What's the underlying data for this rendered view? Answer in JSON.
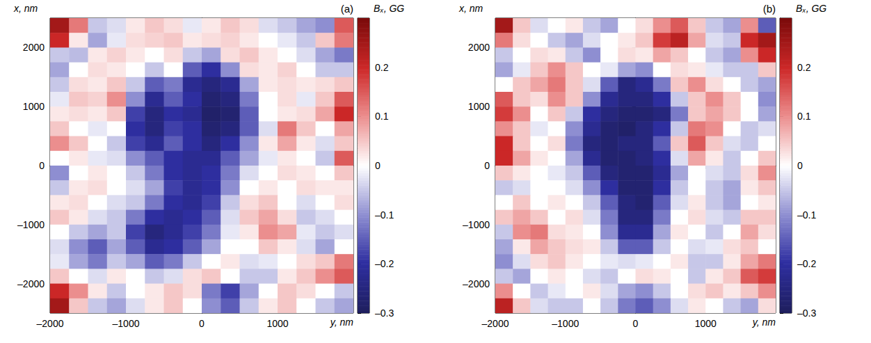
{
  "chart_data": [
    {
      "type": "heatmap",
      "title": "(a)",
      "xlabel": "y, nm",
      "ylabel": "x, nm",
      "xlim": [
        -2000,
        2000
      ],
      "xticks": [
        {
          "value": -2000,
          "label": "–2000"
        },
        {
          "value": -1000,
          "label": "–1000"
        },
        0,
        1000
      ],
      "ylim": [
        -2500,
        2500
      ],
      "yticks": [
        {
          "value": -2000,
          "label": "–2000"
        },
        {
          "value": -1000,
          "label": "–1000"
        },
        0,
        1000,
        2000
      ],
      "cells": {
        "x": [
          -1875,
          -1625,
          -1375,
          -1125,
          -875,
          -625,
          -375,
          -125,
          125,
          375,
          625,
          875,
          1125,
          1375,
          1625,
          1875
        ],
        "y": [
          2375,
          2125,
          1875,
          1625,
          1375,
          1125,
          875,
          625,
          375,
          125,
          -125,
          -375,
          -625,
          -875,
          -1125,
          -1375,
          -1625,
          -1875,
          -2125,
          -2375
        ],
        "values": [
          [
            0.25,
            0.12,
            -0.05,
            -0.03,
            0.02,
            0.05,
            0.03,
            -0.02,
            0.02,
            0.05,
            0.03,
            -0.03,
            -0.05,
            -0.08,
            -0.1,
            0.15
          ],
          [
            0.2,
            0.02,
            -0.08,
            -0.02,
            0.03,
            0.04,
            0.05,
            0.02,
            0.03,
            0.04,
            0.02,
            0.0,
            -0.02,
            -0.05,
            0.05,
            0.12
          ],
          [
            -0.05,
            -0.06,
            0.02,
            0.04,
            0.02,
            0.0,
            0.03,
            -0.05,
            -0.08,
            0.03,
            0.05,
            0.02,
            0.0,
            -0.03,
            -0.08,
            -0.12
          ],
          [
            -0.08,
            0.0,
            0.03,
            0.02,
            0.0,
            -0.05,
            0.0,
            -0.15,
            -0.2,
            -0.1,
            0.03,
            0.02,
            0.04,
            0.0,
            -0.05,
            -0.05
          ],
          [
            -0.05,
            0.03,
            0.02,
            0.05,
            -0.05,
            -0.15,
            -0.12,
            -0.22,
            -0.25,
            -0.22,
            -0.08,
            0.02,
            0.03,
            0.02,
            0.03,
            0.05
          ],
          [
            -0.02,
            0.05,
            0.04,
            0.1,
            -0.1,
            -0.22,
            -0.15,
            -0.2,
            -0.27,
            -0.25,
            -0.12,
            0.0,
            0.03,
            -0.02,
            0.05,
            0.15
          ],
          [
            0.02,
            0.03,
            0.02,
            0.05,
            -0.18,
            -0.25,
            -0.2,
            -0.22,
            -0.28,
            -0.27,
            -0.15,
            0.0,
            0.02,
            0.03,
            0.08,
            0.2
          ],
          [
            0.05,
            0.0,
            -0.02,
            0.0,
            -0.2,
            -0.25,
            -0.18,
            -0.2,
            -0.27,
            -0.25,
            -0.15,
            -0.03,
            0.12,
            0.05,
            0.0,
            0.08
          ],
          [
            0.1,
            0.05,
            0.0,
            -0.05,
            -0.18,
            -0.22,
            -0.15,
            -0.2,
            -0.25,
            -0.2,
            -0.1,
            0.02,
            0.08,
            0.02,
            -0.03,
            0.05
          ],
          [
            0.0,
            0.02,
            -0.02,
            -0.03,
            -0.1,
            -0.15,
            -0.2,
            -0.22,
            -0.22,
            -0.15,
            -0.08,
            -0.02,
            0.02,
            0.0,
            -0.05,
            0.15
          ],
          [
            -0.1,
            0.0,
            0.02,
            0.0,
            -0.05,
            -0.12,
            -0.2,
            -0.22,
            -0.2,
            -0.12,
            -0.03,
            0.0,
            0.03,
            0.02,
            0.0,
            0.05
          ],
          [
            -0.05,
            0.02,
            0.03,
            0.0,
            -0.03,
            -0.08,
            -0.18,
            -0.22,
            -0.2,
            -0.1,
            0.0,
            0.02,
            0.0,
            0.03,
            0.02,
            0.02
          ],
          [
            0.02,
            0.03,
            0.0,
            -0.03,
            -0.05,
            -0.12,
            -0.2,
            -0.22,
            -0.18,
            -0.05,
            0.03,
            0.05,
            0.0,
            -0.03,
            0.0,
            0.03
          ],
          [
            0.05,
            0.02,
            -0.03,
            -0.05,
            -0.12,
            -0.2,
            -0.22,
            -0.2,
            -0.15,
            -0.03,
            0.05,
            0.08,
            0.03,
            -0.05,
            -0.03,
            0.0
          ],
          [
            0.0,
            -0.05,
            -0.08,
            -0.05,
            -0.18,
            -0.25,
            -0.22,
            -0.18,
            -0.12,
            -0.02,
            0.02,
            0.1,
            0.08,
            -0.02,
            -0.05,
            -0.03
          ],
          [
            -0.03,
            -0.1,
            -0.15,
            -0.08,
            -0.15,
            -0.22,
            -0.2,
            -0.15,
            -0.08,
            0.0,
            0.0,
            0.05,
            0.02,
            -0.03,
            -0.08,
            0.0
          ],
          [
            -0.02,
            -0.08,
            -0.12,
            -0.05,
            -0.08,
            -0.15,
            -0.12,
            -0.05,
            0.0,
            0.02,
            -0.03,
            -0.02,
            0.0,
            0.03,
            0.05,
            0.12
          ],
          [
            0.05,
            0.0,
            -0.03,
            0.02,
            0.0,
            -0.05,
            -0.03,
            0.03,
            0.05,
            0.0,
            -0.05,
            -0.05,
            0.02,
            0.05,
            0.1,
            0.15
          ],
          [
            0.2,
            0.1,
            0.02,
            -0.05,
            0.0,
            0.02,
            0.05,
            0.03,
            -0.12,
            -0.18,
            -0.08,
            0.0,
            0.05,
            0.03,
            0.0,
            -0.05
          ],
          [
            0.25,
            0.05,
            -0.05,
            -0.08,
            -0.03,
            0.02,
            0.05,
            0.0,
            -0.1,
            -0.15,
            -0.05,
            0.02,
            0.05,
            0.0,
            -0.05,
            -0.08
          ]
        ]
      },
      "colorbar": {
        "label": "Bₓ, GG",
        "range": [
          -0.3,
          0.3
        ],
        "ticks": [
          {
            "value": -0.3,
            "label": "–0.3"
          },
          {
            "value": -0.2,
            "label": "–0.2"
          },
          {
            "value": -0.1,
            "label": "–0.1"
          },
          0,
          0.1,
          0.2
        ]
      }
    },
    {
      "type": "heatmap",
      "title": "(b)",
      "xlabel": "y, nm",
      "ylabel": "x, nm",
      "xlim": [
        -2000,
        2000
      ],
      "xticks": [
        {
          "value": -2000,
          "label": "–2000"
        },
        {
          "value": -1000,
          "label": "–1000"
        },
        0,
        1000
      ],
      "ylim": [
        -2500,
        2500
      ],
      "yticks": [
        {
          "value": -2000,
          "label": "–2000"
        },
        {
          "value": -1000,
          "label": "–1000"
        },
        0,
        1000,
        2000
      ],
      "cells": {
        "x": [
          -1875,
          -1625,
          -1375,
          -1125,
          -875,
          -625,
          -375,
          -125,
          125,
          375,
          625,
          875,
          1125,
          1375,
          1625,
          1875
        ],
        "y": [
          2375,
          2125,
          1875,
          1625,
          1375,
          1125,
          875,
          625,
          375,
          125,
          -125,
          -375,
          -625,
          -875,
          -1125,
          -1375,
          -1625,
          -1875,
          -2125,
          -2375
        ],
        "values": [
          [
            0.25,
            0.05,
            -0.03,
            0.0,
            0.02,
            -0.05,
            -0.08,
            0.0,
            0.03,
            0.1,
            0.15,
            0.05,
            -0.05,
            -0.08,
            0.1,
            -0.15
          ],
          [
            0.12,
            0.03,
            0.0,
            -0.05,
            -0.08,
            -0.03,
            0.0,
            0.02,
            0.05,
            0.18,
            0.22,
            0.08,
            -0.03,
            -0.05,
            0.2,
            0.25
          ],
          [
            -0.05,
            0.0,
            0.03,
            0.02,
            -0.05,
            -0.1,
            0.0,
            0.03,
            0.02,
            0.08,
            0.05,
            0.0,
            -0.05,
            -0.08,
            0.1,
            0.2
          ],
          [
            -0.08,
            -0.02,
            0.05,
            0.1,
            0.05,
            0.0,
            -0.02,
            -0.08,
            -0.1,
            0.0,
            0.03,
            0.02,
            -0.02,
            -0.05,
            -0.05,
            0.05
          ],
          [
            0.0,
            0.05,
            0.08,
            0.12,
            0.05,
            -0.03,
            -0.15,
            -0.25,
            -0.22,
            -0.12,
            0.05,
            0.1,
            0.03,
            0.0,
            -0.05,
            -0.08
          ],
          [
            0.15,
            0.05,
            0.03,
            0.1,
            0.05,
            -0.1,
            -0.22,
            -0.25,
            -0.25,
            -0.2,
            -0.05,
            0.05,
            0.1,
            0.05,
            0.0,
            -0.1
          ],
          [
            0.18,
            0.1,
            0.0,
            0.05,
            -0.05,
            -0.2,
            -0.25,
            -0.27,
            -0.27,
            -0.25,
            -0.12,
            0.05,
            0.08,
            0.05,
            0.0,
            -0.08
          ],
          [
            0.1,
            0.05,
            -0.02,
            0.0,
            -0.1,
            -0.22,
            -0.27,
            -0.28,
            -0.25,
            -0.2,
            -0.05,
            0.12,
            0.1,
            0.0,
            -0.05,
            -0.03
          ],
          [
            0.2,
            0.05,
            0.0,
            0.03,
            -0.12,
            -0.25,
            -0.27,
            -0.25,
            -0.25,
            -0.15,
            0.05,
            0.15,
            0.05,
            -0.03,
            -0.05,
            0.0
          ],
          [
            0.2,
            0.08,
            0.02,
            0.0,
            -0.08,
            -0.22,
            -0.27,
            -0.27,
            -0.25,
            -0.2,
            -0.03,
            0.08,
            0.02,
            -0.05,
            0.0,
            0.05
          ],
          [
            0.05,
            0.02,
            0.0,
            -0.02,
            -0.05,
            -0.15,
            -0.25,
            -0.27,
            -0.27,
            -0.22,
            -0.08,
            0.0,
            -0.03,
            -0.05,
            0.03,
            0.1
          ],
          [
            -0.05,
            -0.03,
            0.0,
            0.0,
            -0.03,
            -0.1,
            -0.2,
            -0.27,
            -0.27,
            -0.2,
            -0.05,
            0.0,
            -0.05,
            -0.08,
            0.02,
            0.05
          ],
          [
            0.0,
            0.05,
            0.0,
            0.02,
            0.0,
            -0.05,
            -0.15,
            -0.25,
            -0.27,
            -0.15,
            -0.03,
            0.02,
            -0.05,
            -0.08,
            0.0,
            0.02
          ],
          [
            0.05,
            0.08,
            0.05,
            0.0,
            0.03,
            -0.03,
            -0.12,
            -0.25,
            -0.25,
            -0.12,
            0.0,
            0.03,
            -0.03,
            -0.05,
            0.05,
            0.05
          ],
          [
            -0.05,
            0.1,
            0.12,
            0.03,
            0.02,
            0.0,
            -0.1,
            -0.22,
            -0.22,
            -0.08,
            0.02,
            0.0,
            -0.05,
            0.0,
            0.08,
            0.03
          ],
          [
            -0.08,
            0.02,
            0.08,
            0.05,
            0.03,
            0.02,
            -0.05,
            -0.15,
            -0.15,
            -0.05,
            0.0,
            -0.03,
            -0.02,
            0.03,
            0.05,
            0.0
          ],
          [
            -0.1,
            -0.03,
            0.03,
            0.05,
            0.02,
            0.0,
            -0.02,
            -0.03,
            -0.02,
            0.0,
            0.02,
            -0.05,
            -0.05,
            0.02,
            0.08,
            0.12
          ],
          [
            -0.05,
            -0.08,
            0.0,
            0.02,
            0.0,
            -0.03,
            -0.05,
            0.0,
            0.03,
            0.02,
            0.0,
            -0.05,
            0.02,
            0.05,
            0.15,
            0.18
          ],
          [
            0.1,
            0.0,
            -0.05,
            -0.02,
            0.0,
            0.02,
            -0.03,
            -0.08,
            -0.1,
            -0.05,
            0.0,
            0.03,
            0.05,
            0.02,
            0.05,
            0.1
          ],
          [
            0.22,
            0.05,
            -0.03,
            -0.05,
            -0.05,
            0.0,
            -0.05,
            -0.12,
            -0.15,
            -0.1,
            -0.03,
            0.02,
            0.0,
            -0.05,
            -0.08,
            0.03
          ]
        ]
      },
      "colorbar": {
        "label": "Bₓ, GG",
        "range": [
          -0.3,
          0.3
        ],
        "ticks": [
          {
            "value": -0.3,
            "label": "–0.3"
          },
          {
            "value": -0.2,
            "label": "–0.2"
          },
          {
            "value": -0.1,
            "label": "–0.1"
          },
          0,
          0.1,
          0.2
        ]
      }
    }
  ]
}
